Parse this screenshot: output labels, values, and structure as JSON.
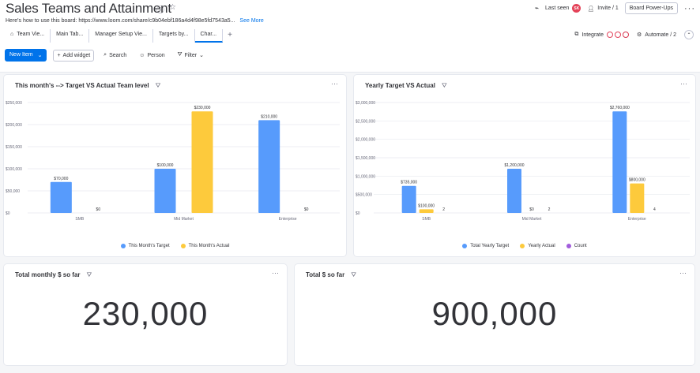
{
  "header": {
    "title": "Sales Teams and Attainment",
    "subtitle": "Here's how to use this board: https://www.loom.com/share/c9b04ebf186a4d4f98e5fd7543a5...",
    "see_more": "See More",
    "last_seen": "Last seen",
    "avatar_initials": "SK",
    "invite": "Invite / 1",
    "board_powerups": "Board Power-Ups",
    "more": "···"
  },
  "tabs": [
    {
      "label": "Team Vie..."
    },
    {
      "label": "Main Tab..."
    },
    {
      "label": "Manager Setup Vie..."
    },
    {
      "label": "Targets by..."
    },
    {
      "label": "Char..."
    }
  ],
  "tabs_right": {
    "integrate": "Integrate",
    "automate": "Automate / 2"
  },
  "toolbar": {
    "new_item": "New Item",
    "add_widget": "Add widget",
    "search": "Search",
    "person": "Person",
    "filter": "Filter"
  },
  "widgets": {
    "w1": {
      "title": "This month's --> Target VS Actual Team level",
      "menu": "···"
    },
    "w2": {
      "title": "Yearly Target VS Actual",
      "menu": "···"
    },
    "w3": {
      "title": "Total monthly $ so far",
      "menu": "···",
      "value": "230,000"
    },
    "w4": {
      "title": "Total $ so far",
      "menu": "···",
      "value": "900,000"
    }
  },
  "chart_data": [
    {
      "type": "bar",
      "title": "This month's --> Target VS Actual Team level",
      "categories": [
        "SMB",
        "Mid Market",
        "Enterprise"
      ],
      "series": [
        {
          "name": "This Month's Target",
          "color": "#579bfc",
          "values": [
            70000,
            100000,
            210000
          ],
          "labels": [
            "$70,000",
            "$100,000",
            "$210,000"
          ]
        },
        {
          "name": "This Month's Actual",
          "color": "#fdca3c",
          "values": [
            0,
            230000,
            0
          ],
          "labels": [
            "$0",
            "$230,000",
            "$0"
          ]
        }
      ],
      "ylim": [
        0,
        250000
      ],
      "yticks": [
        0,
        50000,
        100000,
        150000,
        200000,
        250000
      ],
      "ytick_labels": [
        "$0",
        "$50,000",
        "$100,000",
        "$150,000",
        "$200,000",
        "$250,000"
      ],
      "legend_position": "bottom"
    },
    {
      "type": "bar",
      "title": "Yearly Target VS Actual",
      "categories": [
        "SMB",
        "Mid Market",
        "Enterprise"
      ],
      "series": [
        {
          "name": "Total Yearly Target",
          "color": "#579bfc",
          "values": [
            735000,
            1200000,
            2760000
          ],
          "labels": [
            "$735,000",
            "$1,200,000",
            "$2,760,000"
          ]
        },
        {
          "name": "Yearly Actual",
          "color": "#fdca3c",
          "values": [
            100000,
            0,
            800000
          ],
          "labels": [
            "$100,000",
            "$0",
            "$800,000"
          ]
        },
        {
          "name": "Count",
          "color": "#a25ddc",
          "values": [
            2,
            2,
            4
          ],
          "labels": [
            "2",
            "2",
            "4"
          ]
        }
      ],
      "ylim": [
        0,
        3000000
      ],
      "yticks": [
        0,
        500000,
        1000000,
        1500000,
        2000000,
        2500000,
        3000000
      ],
      "ytick_labels": [
        "$0",
        "$500,000",
        "$1,000,000",
        "$1,500,000",
        "$2,000,000",
        "$2,500,000",
        "$3,000,000"
      ],
      "legend_position": "bottom"
    }
  ]
}
